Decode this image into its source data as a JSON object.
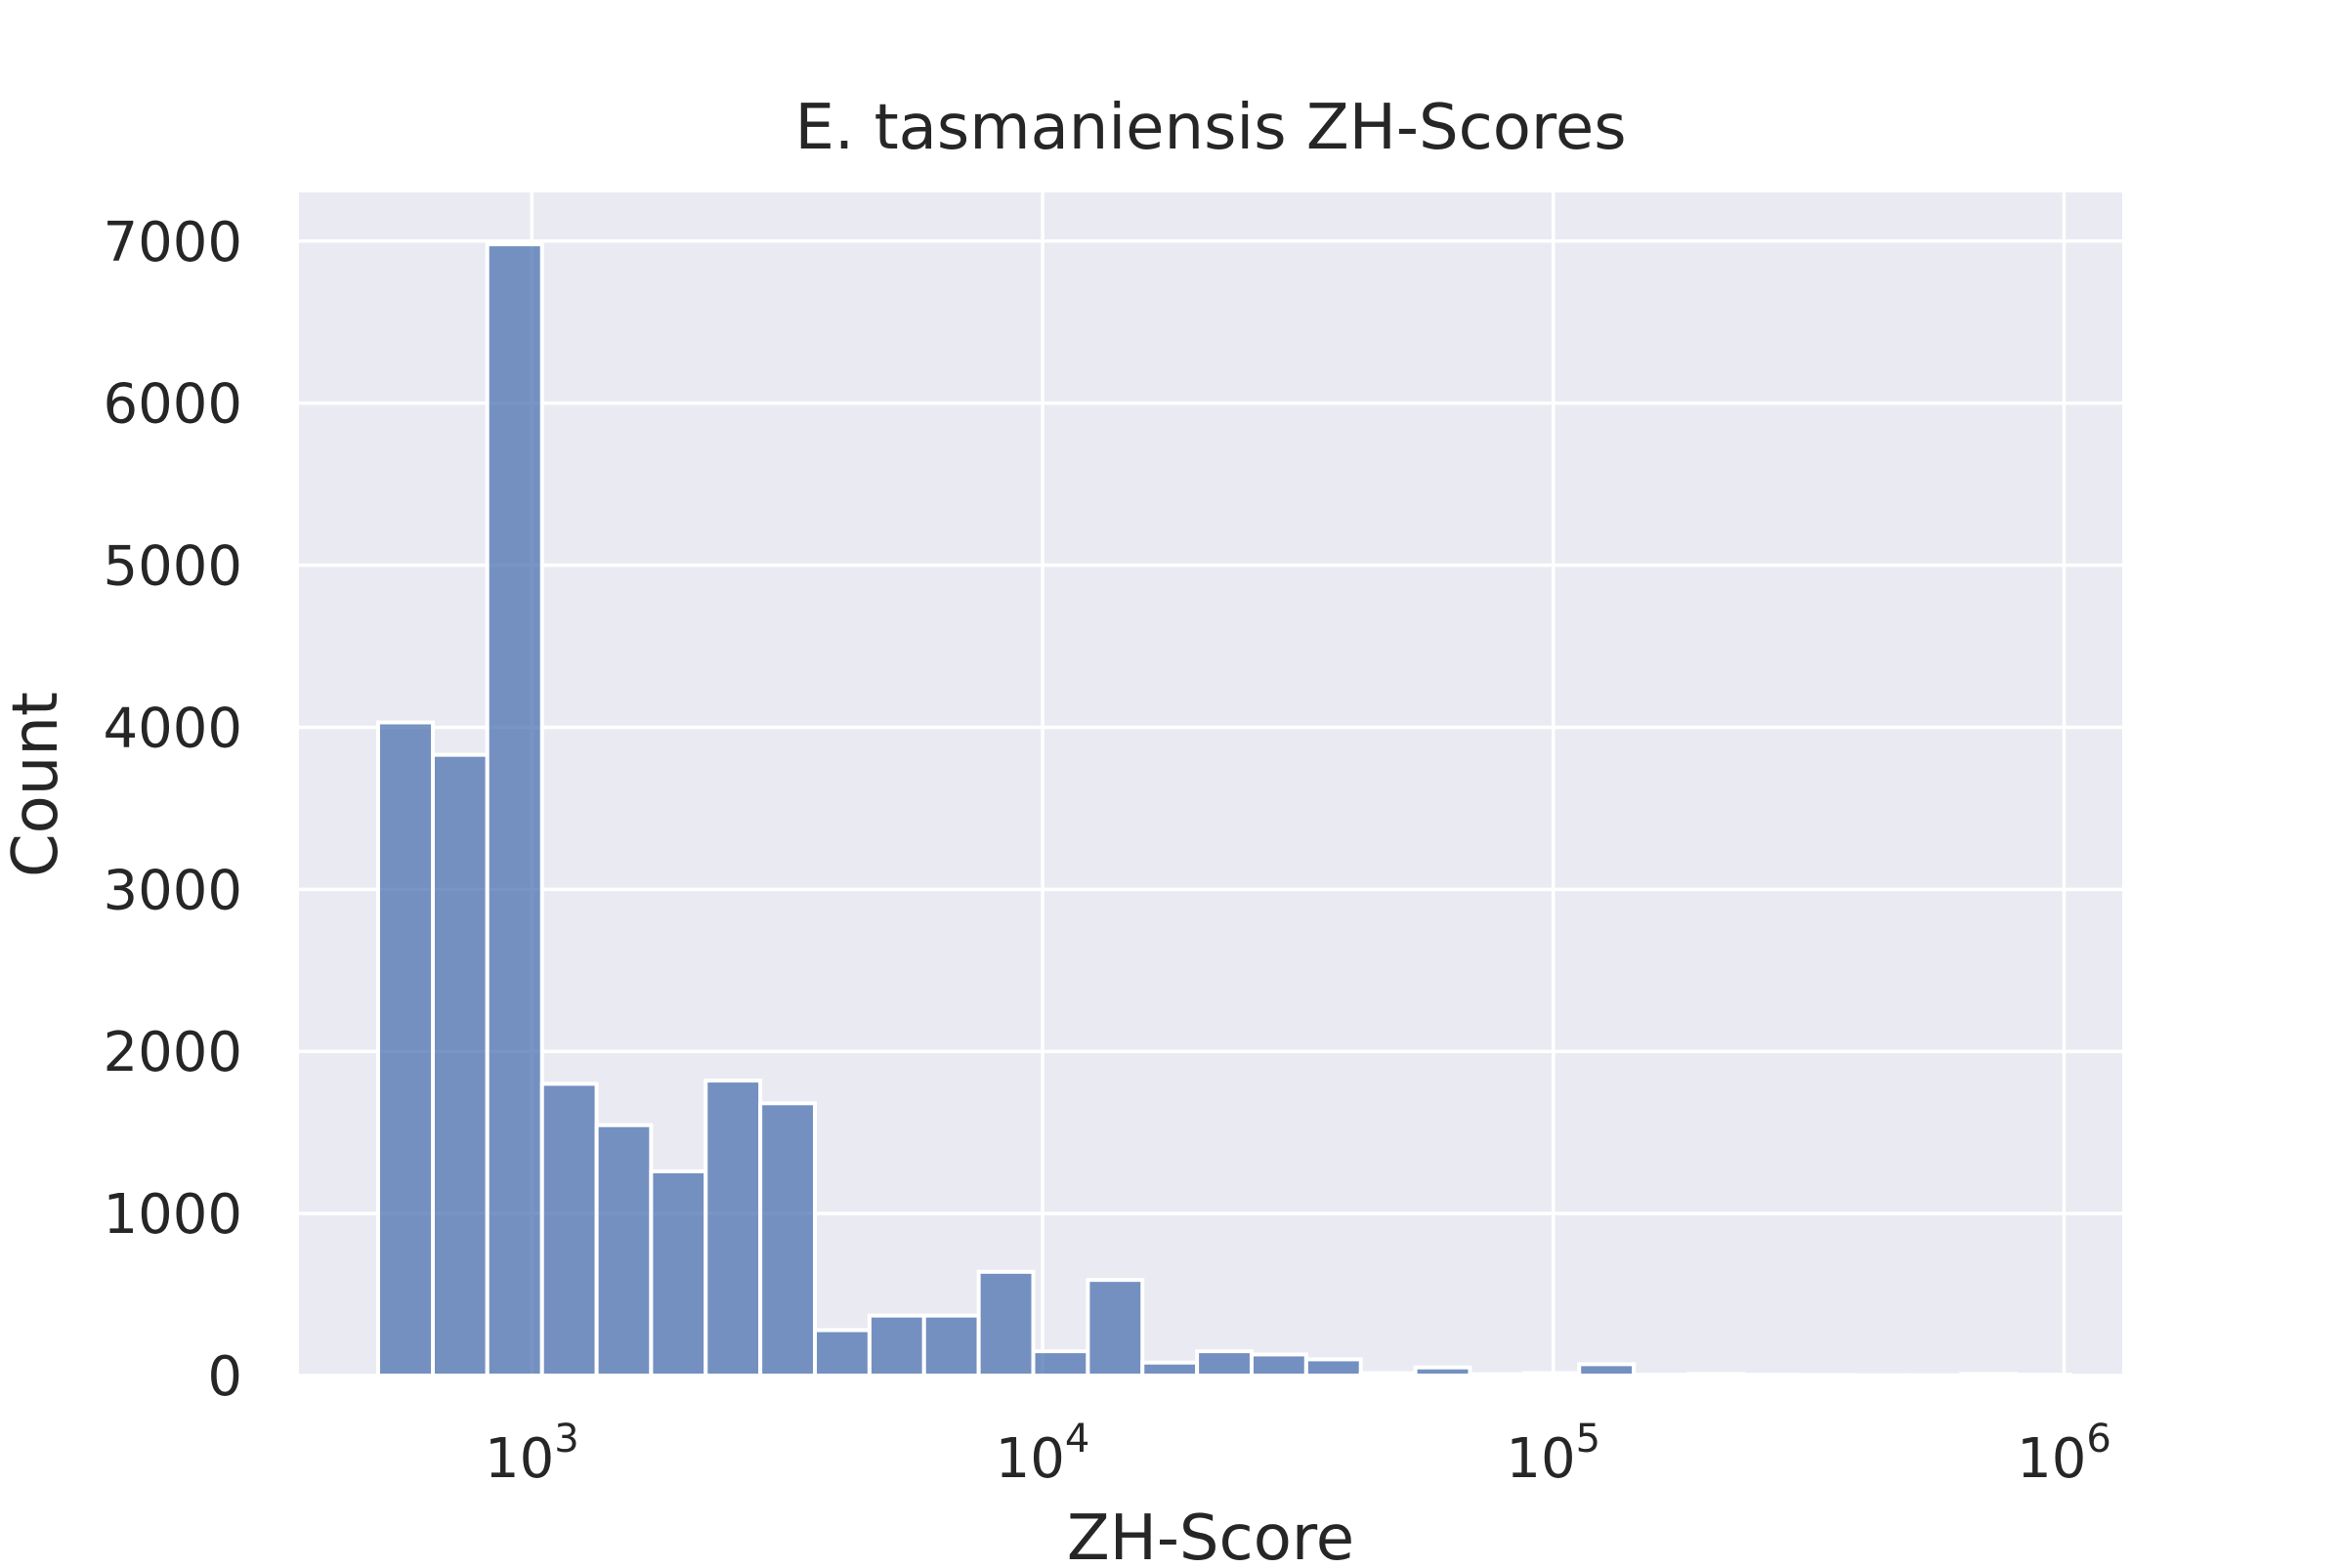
{
  "chart_data": {
    "type": "bar",
    "title": "E. tasmaniensis ZH-Scores",
    "xlabel": "ZH-Score",
    "ylabel": "Count",
    "x_scale": "log10",
    "xlim": [
      350,
      1300000
    ],
    "ylim": [
      0,
      7300
    ],
    "grid": true,
    "legend": "none",
    "colors": {
      "background": "#eaeaf2",
      "grid": "#ffffff",
      "bar": "#4c72b0",
      "text": "#262626"
    },
    "x_ticks": [
      {
        "value": 1000,
        "base": "10",
        "exp": "3"
      },
      {
        "value": 10000,
        "base": "10",
        "exp": "4"
      },
      {
        "value": 100000,
        "base": "10",
        "exp": "5"
      },
      {
        "value": 1000000,
        "base": "10",
        "exp": "6"
      }
    ],
    "y_ticks": [
      "0",
      "1000",
      "2000",
      "3000",
      "4000",
      "5000",
      "6000",
      "7000"
    ],
    "bins": [
      {
        "x0": 500,
        "x1": 640,
        "count": 4030
      },
      {
        "x0": 640,
        "x1": 818,
        "count": 3830
      },
      {
        "x0": 818,
        "x1": 1047,
        "count": 6980
      },
      {
        "x0": 1047,
        "x1": 1339,
        "count": 1800
      },
      {
        "x0": 1339,
        "x1": 1712,
        "count": 1545
      },
      {
        "x0": 1712,
        "x1": 2190,
        "count": 1260
      },
      {
        "x0": 2190,
        "x1": 2801,
        "count": 1820
      },
      {
        "x0": 2801,
        "x1": 3583,
        "count": 1680
      },
      {
        "x0": 3583,
        "x1": 4583,
        "count": 280
      },
      {
        "x0": 4583,
        "x1": 5861,
        "count": 370
      },
      {
        "x0": 5861,
        "x1": 7497,
        "count": 370
      },
      {
        "x0": 7497,
        "x1": 9589,
        "count": 640
      },
      {
        "x0": 9589,
        "x1": 12265,
        "count": 150
      },
      {
        "x0": 12265,
        "x1": 15687,
        "count": 590
      },
      {
        "x0": 15687,
        "x1": 20065,
        "count": 80
      },
      {
        "x0": 20065,
        "x1": 25664,
        "count": 150
      },
      {
        "x0": 25664,
        "x1": 32826,
        "count": 130
      },
      {
        "x0": 32826,
        "x1": 41986,
        "count": 100
      },
      {
        "x0": 41986,
        "x1": 53702,
        "count": 15
      },
      {
        "x0": 53702,
        "x1": 68688,
        "count": 50
      },
      {
        "x0": 68688,
        "x1": 87855,
        "count": 8
      },
      {
        "x0": 87855,
        "x1": 112372,
        "count": 15
      },
      {
        "x0": 112372,
        "x1": 143730,
        "count": 70
      },
      {
        "x0": 143730,
        "x1": 183838,
        "count": 5
      },
      {
        "x0": 183838,
        "x1": 235138,
        "count": 10
      },
      {
        "x0": 235138,
        "x1": 300753,
        "count": 5
      },
      {
        "x0": 300753,
        "x1": 384679,
        "count": 3
      },
      {
        "x0": 384679,
        "x1": 492026,
        "count": 2
      },
      {
        "x0": 492026,
        "x1": 629329,
        "count": 2
      },
      {
        "x0": 629329,
        "x1": 804946,
        "count": 10
      },
      {
        "x0": 804946,
        "x1": 1029571,
        "count": 5
      }
    ]
  }
}
